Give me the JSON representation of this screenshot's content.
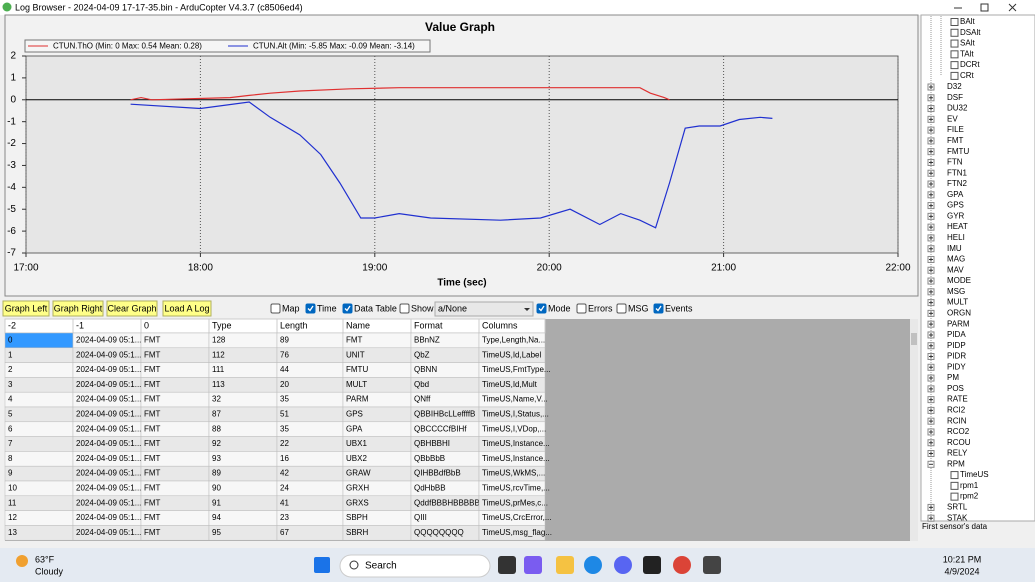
{
  "window": {
    "title": "Log Browser - 2024-04-09 17-17-35.bin - ArduCopter V4.3.7 (c8506ed4)"
  },
  "chart_data": {
    "type": "line",
    "title": "Value Graph",
    "x_label": "Time (sec)",
    "xlim": [
      17,
      22
    ],
    "xticks": [
      {
        "value": 17,
        "label": "17:00"
      },
      {
        "value": 18,
        "label": "18:00"
      },
      {
        "value": 19,
        "label": "19:00"
      },
      {
        "value": 20,
        "label": "20:00"
      },
      {
        "value": 21,
        "label": "21:00"
      },
      {
        "value": 22,
        "label": "22:00"
      }
    ],
    "ylim": [
      -7,
      2
    ],
    "yticks": [
      2,
      1,
      0,
      -1,
      -2,
      -3,
      -4,
      -5,
      -6,
      -7
    ],
    "grid": true,
    "series": [
      {
        "name": "CTUN.ThO  (Min: 0 Max: 0.54 Mean: 0.28)",
        "color": "#e03030",
        "x": [
          17.6,
          17.66,
          17.72,
          18.17,
          18.28,
          18.4,
          18.57,
          18.86,
          19.14,
          20.52,
          20.58,
          20.66,
          20.69
        ],
        "values": [
          0,
          0.1,
          0,
          0.1,
          0.2,
          0.3,
          0.4,
          0.5,
          0.55,
          0.55,
          0.3,
          0.1,
          0
        ]
      },
      {
        "name": "CTUN.Alt  (Min: -5.85 Max: -0.09 Mean: -3.14)",
        "color": "#2030d0",
        "x": [
          17.6,
          18.0,
          18.28,
          18.4,
          18.57,
          18.69,
          18.8,
          18.92,
          19.0,
          19.14,
          19.32,
          19.72,
          19.95,
          20.12,
          20.29,
          20.41,
          20.52,
          20.61,
          20.69,
          20.78,
          20.86,
          20.98,
          21.09,
          21.21,
          21.28
        ],
        "values": [
          -0.2,
          -0.4,
          -0.1,
          -0.8,
          -1.6,
          -2.5,
          -3.8,
          -5.4,
          -5.4,
          -5.2,
          -5.4,
          -5.5,
          -5.4,
          -5.0,
          -5.7,
          -5.2,
          -5.5,
          -5.85,
          -3.8,
          -1.3,
          -1.2,
          -1.2,
          -0.9,
          -0.8,
          -0.85
        ]
      }
    ]
  },
  "toolbar": {
    "buttons": [
      "Graph Left",
      "Graph Right",
      "Clear Graph",
      "Load A Log"
    ],
    "checkboxes": [
      {
        "label": "Map",
        "checked": false
      },
      {
        "label": "Time",
        "checked": true
      },
      {
        "label": "Data Table",
        "checked": true
      },
      {
        "label": "Show Params",
        "checked": false
      },
      {
        "label": "Mode",
        "checked": true
      },
      {
        "label": "Errors",
        "checked": false
      },
      {
        "label": "MSG",
        "checked": false
      },
      {
        "label": "Events",
        "checked": true
      }
    ],
    "dropdown": "a/None"
  },
  "table": {
    "columns": [
      "-2",
      "-1",
      "0",
      "Type",
      "Length",
      "Name",
      "Format",
      "Columns"
    ],
    "rows": [
      [
        "0",
        "2024-04-09 05:1...",
        "FMT",
        "128",
        "89",
        "FMT",
        "BBnNZ",
        "Type,Length,Na..."
      ],
      [
        "1",
        "2024-04-09 05:1...",
        "FMT",
        "112",
        "76",
        "UNIT",
        "QbZ",
        "TimeUS,Id,Label"
      ],
      [
        "2",
        "2024-04-09 05:1...",
        "FMT",
        "111",
        "44",
        "FMTU",
        "QBNN",
        "TimeUS,FmtType..."
      ],
      [
        "3",
        "2024-04-09 05:1...",
        "FMT",
        "113",
        "20",
        "MULT",
        "Qbd",
        "TimeUS,Id,Mult"
      ],
      [
        "4",
        "2024-04-09 05:1...",
        "FMT",
        "32",
        "35",
        "PARM",
        "QNff",
        "TimeUS,Name,V..."
      ],
      [
        "5",
        "2024-04-09 05:1...",
        "FMT",
        "87",
        "51",
        "GPS",
        "QBBIHBcLLeffffB",
        "TimeUS,I,Status,..."
      ],
      [
        "6",
        "2024-04-09 05:1...",
        "FMT",
        "88",
        "35",
        "GPA",
        "QBCCCCfBIHf",
        "TimeUS,I,VDop,..."
      ],
      [
        "7",
        "2024-04-09 05:1...",
        "FMT",
        "92",
        "22",
        "UBX1",
        "QBHBBHI",
        "TimeUS,Instance..."
      ],
      [
        "8",
        "2024-04-09 05:1...",
        "FMT",
        "93",
        "16",
        "UBX2",
        "QBbBbB",
        "TimeUS,Instance..."
      ],
      [
        "9",
        "2024-04-09 05:1...",
        "FMT",
        "89",
        "42",
        "GRAW",
        "QIHBBdfBbB",
        "TimeUS,WkMS,..."
      ],
      [
        "10",
        "2024-04-09 05:1...",
        "FMT",
        "90",
        "24",
        "GRXH",
        "QdHbBB",
        "TimeUS,rcvTime,..."
      ],
      [
        "11",
        "2024-04-09 05:1...",
        "FMT",
        "91",
        "41",
        "GRXS",
        "QddfBBBHBBBBB",
        "TimeUS,prMes,c..."
      ],
      [
        "12",
        "2024-04-09 05:1...",
        "FMT",
        "94",
        "23",
        "SBPH",
        "QIII",
        "TimeUS,CrcError,..."
      ],
      [
        "13",
        "2024-04-09 05:1...",
        "FMT",
        "95",
        "67",
        "SBRH",
        "QQQQQQQQ",
        "TimeUS,msg_flag..."
      ]
    ]
  },
  "tree": {
    "ctun_fields": [
      "BAlt",
      "DSAlt",
      "SAlt",
      "TAlt",
      "DCRt",
      "CRt"
    ],
    "groups": [
      "D32",
      "DSF",
      "DU32",
      "EV",
      "FILE",
      "FMT",
      "FMTU",
      "FTN",
      "FTN1",
      "FTN2",
      "GPA",
      "GPS",
      "GYR",
      "HEAT",
      "HELI",
      "IMU",
      "MAG",
      "MAV",
      "MODE",
      "MSG",
      "MULT",
      "ORGN",
      "PARM",
      "PIDA",
      "PIDP",
      "PIDR",
      "PIDY",
      "PM",
      "POS",
      "RATE",
      "RCI2",
      "RCIN",
      "RCO2",
      "RCOU",
      "RELY",
      "RPM"
    ],
    "rpm_fields": [
      "TimeUS",
      "rpm1",
      "rpm2"
    ],
    "groups_after": [
      "SRTL",
      "STAK"
    ],
    "status": "First sensor's data"
  },
  "taskbar": {
    "temperature": "63°F",
    "weather": "Cloudy",
    "search": "Search",
    "time": "10:21 PM",
    "date": "4/9/2024"
  }
}
